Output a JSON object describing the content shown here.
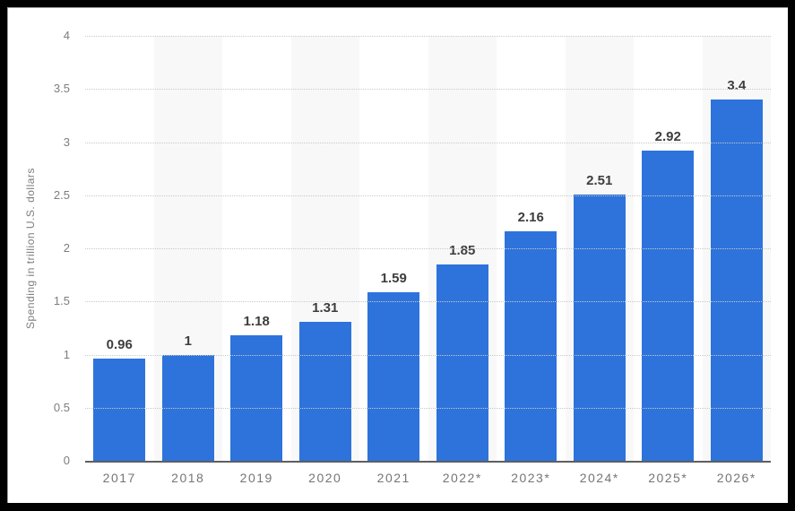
{
  "chart_data": {
    "type": "bar",
    "categories": [
      "2017",
      "2018",
      "2019",
      "2020",
      "2021",
      "2022*",
      "2023*",
      "2024*",
      "2025*",
      "2026*"
    ],
    "values": [
      0.96,
      1,
      1.18,
      1.31,
      1.59,
      1.85,
      2.16,
      2.51,
      2.92,
      3.4
    ],
    "value_labels": [
      "0.96",
      "1",
      "1.18",
      "1.31",
      "1.59",
      "1.85",
      "2.16",
      "2.51",
      "2.92",
      "3.4"
    ],
    "title": "",
    "xlabel": "",
    "ylabel": "Spending in trillion U.S. dollars",
    "ylim": [
      0,
      4
    ],
    "ytick_step": 0.5,
    "yticks": [
      "0",
      "0.5",
      "1",
      "1.5",
      "2",
      "2.5",
      "3",
      "3.5",
      "4"
    ],
    "grid": "horizontal-dotted",
    "legend": "none",
    "striped_columns": "alternating-even",
    "colors": {
      "bar": "#2d73db",
      "stripe": "#f8f8f8",
      "gridline": "#c9c9c9",
      "axis_line": "#5f5f5f",
      "tick_text": "#7d7d7d",
      "value_label_text": "#3d3d3d",
      "background": "#ffffff",
      "frame_border": "#000000"
    }
  }
}
